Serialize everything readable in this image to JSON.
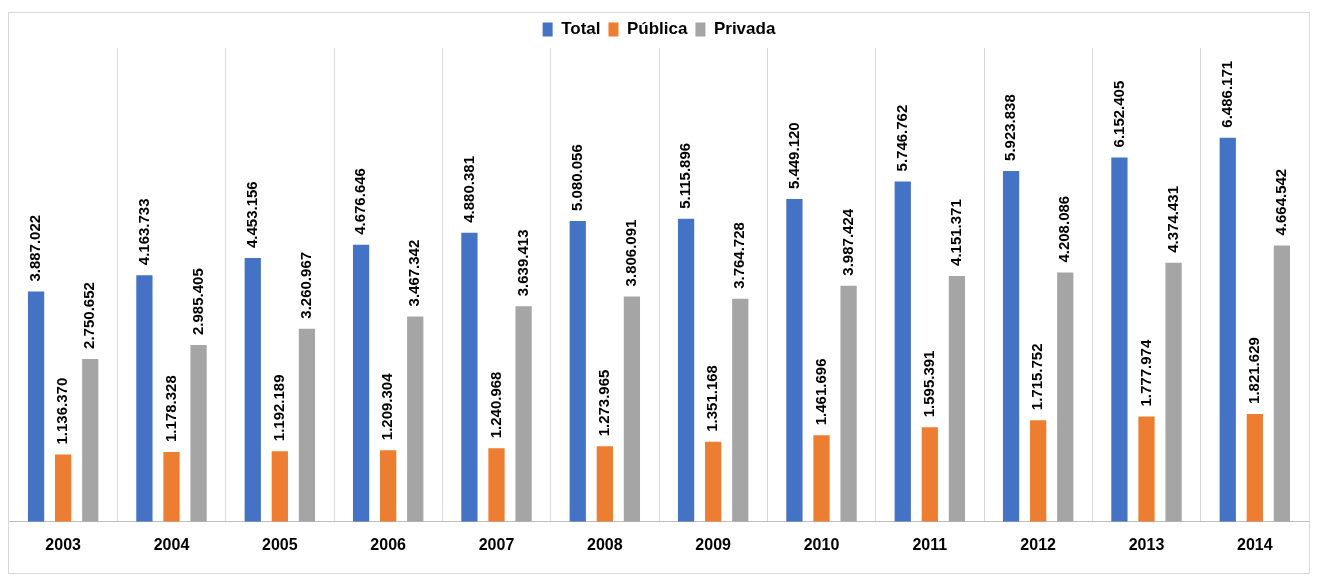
{
  "chart_data": {
    "type": "bar",
    "categories": [
      "2003",
      "2004",
      "2005",
      "2006",
      "2007",
      "2008",
      "2009",
      "2010",
      "2011",
      "2012",
      "2013",
      "2014"
    ],
    "series": [
      {
        "name": "Total",
        "color": "#4472c4",
        "values": [
          3887022,
          4163733,
          4453156,
          4676646,
          4880381,
          5080056,
          5115896,
          5449120,
          5746762,
          5923838,
          6152405,
          6486171
        ],
        "value_labels": [
          "3.887.022",
          "4.163.733",
          "4.453.156",
          "4.676.646",
          "4.880.381",
          "5.080.056",
          "5.115.896",
          "5.449.120",
          "5.746.762",
          "5.923.838",
          "6.152.405",
          "6.486.171"
        ]
      },
      {
        "name": "Pública",
        "color": "#ed7d31",
        "values": [
          1136370,
          1178328,
          1192189,
          1209304,
          1240968,
          1273965,
          1351168,
          1461696,
          1595391,
          1715752,
          1777974,
          1821629
        ],
        "value_labels": [
          "1.136.370",
          "1.178.328",
          "1.192.189",
          "1.209.304",
          "1.240.968",
          "1.273.965",
          "1.351.168",
          "1.461.696",
          "1.595.391",
          "1.715.752",
          "1.777.974",
          "1.821.629"
        ]
      },
      {
        "name": "Privada",
        "color": "#a5a5a5",
        "values": [
          2750652,
          2985405,
          3260967,
          3467342,
          3639413,
          3806091,
          3764728,
          3987424,
          4151371,
          4208086,
          4374431,
          4664542
        ],
        "value_labels": [
          "2.750.652",
          "2.985.405",
          "3.260.967",
          "3.467.342",
          "3.639.413",
          "3.806.091",
          "3.764.728",
          "3.987.424",
          "4.151.371",
          "4.208.086",
          "4.374.431",
          "4.664.542"
        ]
      }
    ],
    "grid": "x",
    "legend": "top"
  }
}
